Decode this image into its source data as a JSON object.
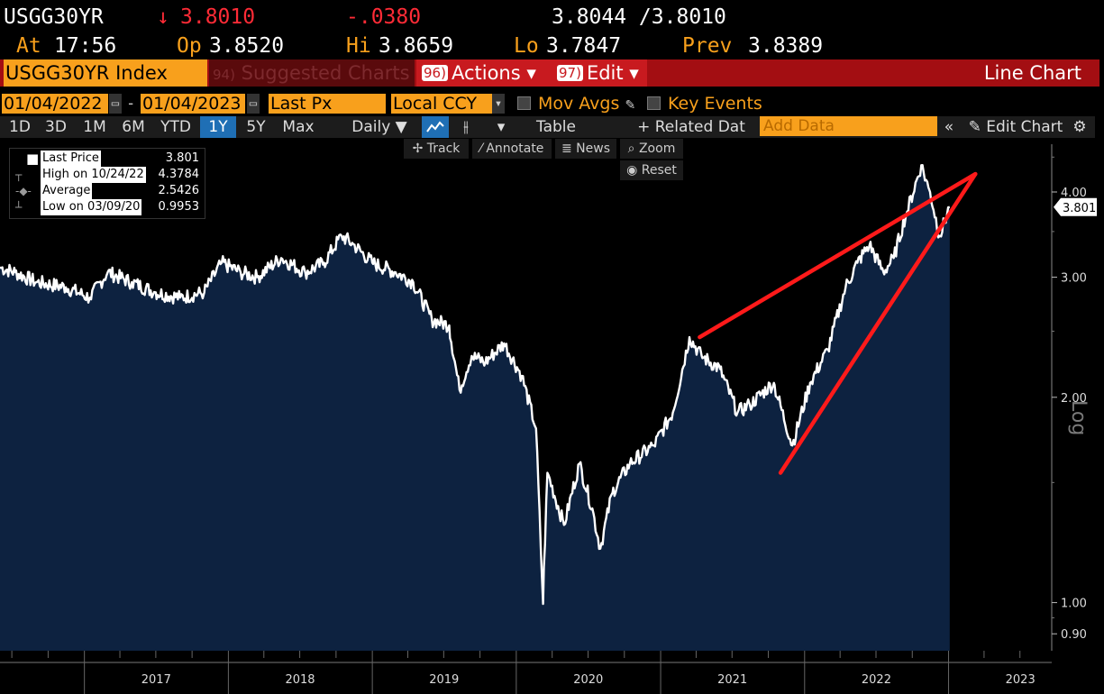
{
  "quote": {
    "ticker": "USGG30YR",
    "arrow": "↓",
    "last": "3.8010",
    "change": "-.0380",
    "bid_ask": "3.8044 /3.8010",
    "time_label": "At",
    "time": "17:56",
    "open_label": "Op",
    "open": "3.8520",
    "high_label": "Hi",
    "high": "3.8659",
    "low_label": "Lo",
    "low": "3.7847",
    "prev_label": "Prev",
    "prev": "3.8389"
  },
  "menubar": {
    "index": "USGG30YR Index",
    "suggested_num": "94)",
    "suggested": "Suggested Charts",
    "actions_num": "96)",
    "actions": "Actions ▾",
    "edit_num": "97)",
    "edit": "Edit ▾",
    "chart_type": "Line Chart"
  },
  "dates": {
    "start": "01/04/2022",
    "dash": "-",
    "end": "01/04/2023",
    "field": "Last Px",
    "currency": "Local CCY",
    "mov_avgs": "Mov Avgs",
    "key_events": "Key Events"
  },
  "ranges": [
    "1D",
    "3D",
    "1M",
    "6M",
    "YTD",
    "1Y",
    "5Y",
    "Max"
  ],
  "selected_range": "1Y",
  "range_bar": {
    "period": "Daily ▼",
    "table": "Table",
    "related": "+ Related Dat",
    "add_data": "Add Data",
    "collapse": "«",
    "edit_chart": "Edit Chart",
    "settings": "⚙"
  },
  "toolbar": {
    "track": "Track",
    "annotate": "Annotate",
    "news": "News",
    "zoom": "Zoom",
    "reset": "Reset"
  },
  "legend": [
    {
      "label": "Last Price",
      "value": "3.801"
    },
    {
      "label": "High on 10/24/22",
      "value": "4.3784"
    },
    {
      "label": "Average",
      "value": "2.5426"
    },
    {
      "label": "Low on 03/09/20",
      "value": "0.9953"
    }
  ],
  "colors": {
    "accent": "#f8a01c",
    "menubar": "#a30e12",
    "area_fill": "#0d2240",
    "line": "#ffffff",
    "trend": "#ff1a1a"
  },
  "chart_data": {
    "type": "area",
    "title": "",
    "xlabel": "",
    "ylabel": "Log",
    "y_scale": "log",
    "ylim": [
      0.85,
      4.7
    ],
    "xlim": [
      "2016-06-01",
      "2023-09-15"
    ],
    "y_ticks": [
      "0.90",
      "1.00",
      "2.00",
      "3.00",
      "4.00"
    ],
    "x_ticks": [
      "2017",
      "2018",
      "2019",
      "2020",
      "2021",
      "2022",
      "2023"
    ],
    "last_value_label": "3.801",
    "series": [
      {
        "points": [
          [
            "2016-06-01",
            3.1
          ],
          [
            "2016-07-10",
            3.05
          ],
          [
            "2016-09-01",
            2.95
          ],
          [
            "2016-11-15",
            2.9
          ],
          [
            "2017-01-15",
            2.8
          ],
          [
            "2017-03-01",
            3.05
          ],
          [
            "2017-05-01",
            2.95
          ],
          [
            "2017-07-01",
            2.85
          ],
          [
            "2017-09-01",
            2.8
          ],
          [
            "2017-11-01",
            2.85
          ],
          [
            "2017-12-15",
            3.15
          ],
          [
            "2018-02-01",
            3.05
          ],
          [
            "2018-03-15",
            3.0
          ],
          [
            "2018-05-15",
            3.2
          ],
          [
            "2018-07-15",
            3.05
          ],
          [
            "2018-09-01",
            3.15
          ],
          [
            "2018-10-15",
            3.45
          ],
          [
            "2018-11-15",
            3.35
          ],
          [
            "2019-01-01",
            3.15
          ],
          [
            "2019-03-01",
            3.05
          ],
          [
            "2019-04-15",
            2.95
          ],
          [
            "2019-06-01",
            2.6
          ],
          [
            "2019-07-15",
            2.55
          ],
          [
            "2019-08-10",
            2.05
          ],
          [
            "2019-09-10",
            2.3
          ],
          [
            "2019-10-15",
            2.25
          ],
          [
            "2019-12-01",
            2.4
          ],
          [
            "2020-01-15",
            2.15
          ],
          [
            "2020-02-20",
            1.8
          ],
          [
            "2020-03-09",
            0.9953
          ],
          [
            "2020-03-20",
            1.55
          ],
          [
            "2020-05-01",
            1.3
          ],
          [
            "2020-06-10",
            1.6
          ],
          [
            "2020-07-15",
            1.35
          ],
          [
            "2020-08-01",
            1.2
          ],
          [
            "2020-09-01",
            1.45
          ],
          [
            "2020-10-15",
            1.6
          ],
          [
            "2020-12-15",
            1.7
          ],
          [
            "2021-02-01",
            1.9
          ],
          [
            "2021-03-15",
            2.45
          ],
          [
            "2021-04-15",
            2.3
          ],
          [
            "2021-06-01",
            2.2
          ],
          [
            "2021-07-15",
            1.9
          ],
          [
            "2021-08-15",
            1.95
          ],
          [
            "2021-10-15",
            2.1
          ],
          [
            "2021-12-01",
            1.7
          ],
          [
            "2022-01-15",
            2.1
          ],
          [
            "2022-03-01",
            2.35
          ],
          [
            "2022-04-15",
            2.9
          ],
          [
            "2022-05-15",
            3.15
          ],
          [
            "2022-06-15",
            3.35
          ],
          [
            "2022-07-20",
            3.05
          ],
          [
            "2022-08-15",
            3.2
          ],
          [
            "2022-09-15",
            3.7
          ],
          [
            "2022-10-24",
            4.3784
          ],
          [
            "2022-11-15",
            4.0
          ],
          [
            "2022-12-10",
            3.45
          ],
          [
            "2023-01-04",
            3.801
          ]
        ]
      }
    ],
    "trendlines": [
      {
        "from": [
          "2021-04-10",
          2.45
        ],
        "to": [
          "2023-03-10",
          4.25
        ]
      },
      {
        "from": [
          "2021-11-01",
          1.55
        ],
        "to": [
          "2023-03-10",
          4.25
        ]
      }
    ]
  }
}
